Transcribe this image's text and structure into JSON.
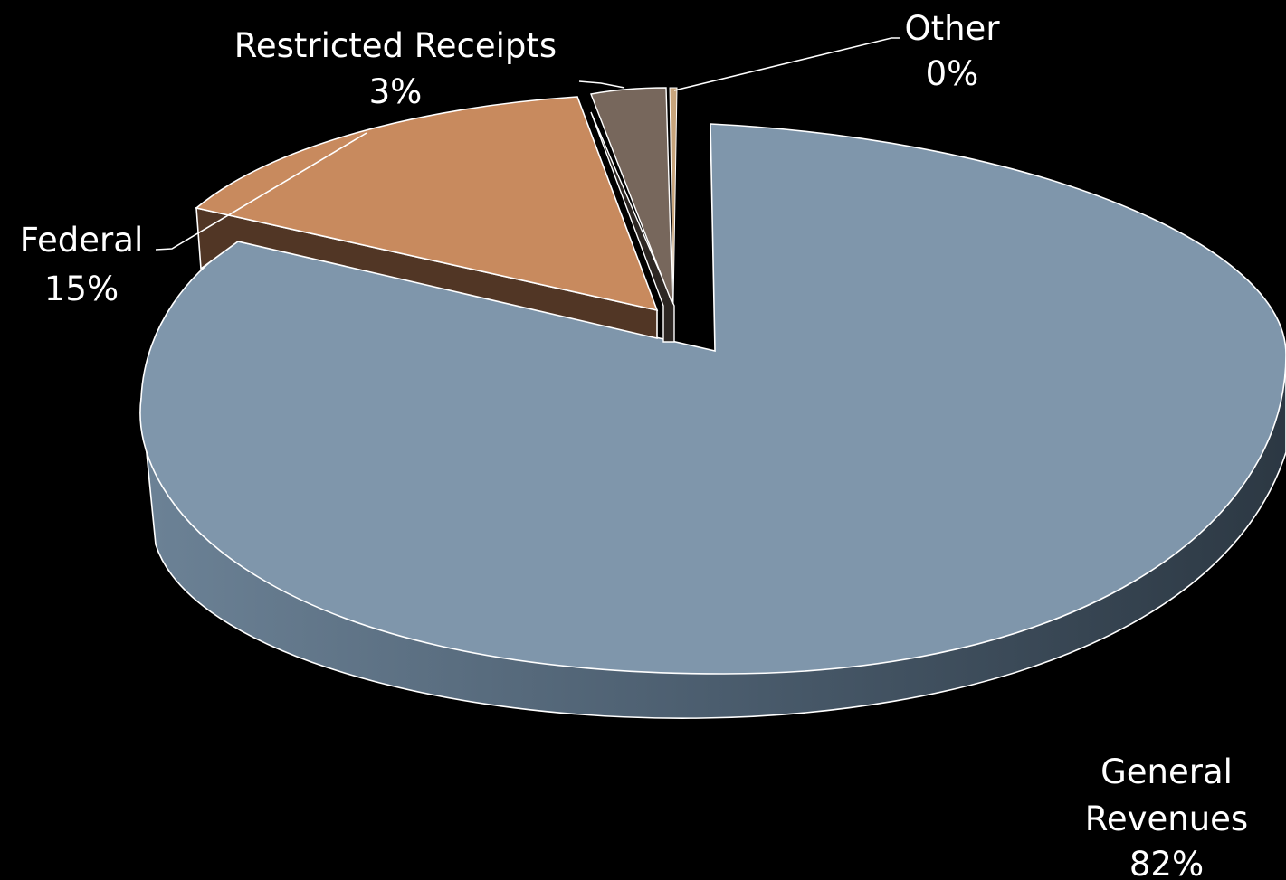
{
  "chart_data": {
    "type": "pie",
    "title": "",
    "style": "3d-exploded",
    "legend": "none",
    "slices": [
      {
        "name": "General Revenues",
        "percent_label": "82%",
        "value": 82,
        "color": "#7f96ab",
        "side_color": "#4f6273"
      },
      {
        "name": "Federal",
        "percent_label": "15%",
        "value": 15,
        "color": "#c88a5e",
        "side_color": "#513625"
      },
      {
        "name": "Restricted Receipts",
        "percent_label": "3%",
        "value": 3,
        "color": "#77675c",
        "side_color": "#2d2723"
      },
      {
        "name": "Other",
        "percent_label": "0%",
        "value": 0.3,
        "color": "#c8a57c",
        "side_color": "#5e4a36"
      }
    ]
  }
}
